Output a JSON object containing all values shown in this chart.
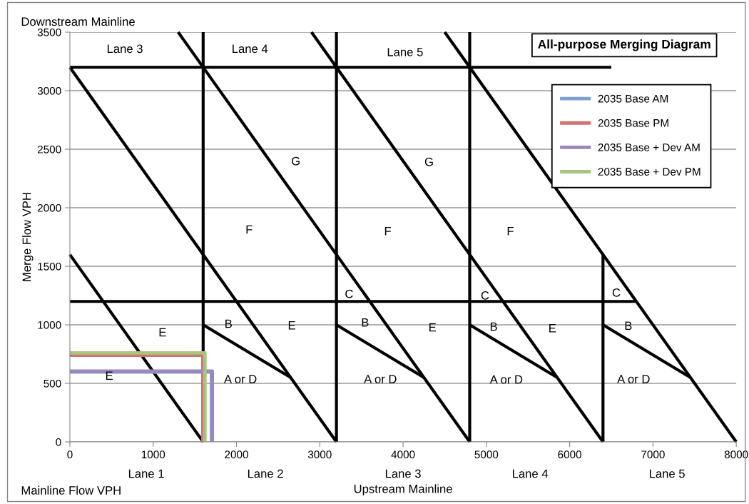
{
  "chart_data": {
    "type": "line",
    "title": "All-purpose Merging Diagram",
    "xlabel": "Upstream Mainline",
    "ylabel": "Merge Flow VPH",
    "xlim": [
      0,
      8000
    ],
    "xticks": [
      0,
      1000,
      2000,
      3000,
      4000,
      5000,
      6000,
      7000,
      8000
    ],
    "ylim": [
      0,
      3500
    ],
    "yticks": [
      0,
      500,
      1000,
      1500,
      2000,
      2500,
      3000,
      3500
    ],
    "grid": "y",
    "legend": "top right",
    "marker": "none",
    "line_style": "solid",
    "series": [
      {
        "color": "#000000",
        "x": [
          0,
          1600
        ],
        "values": [
          1600,
          0
        ]
      },
      {
        "color": "#000000",
        "x": [
          0,
          3200
        ],
        "values": [
          3200,
          0
        ]
      },
      {
        "color": "#000000",
        "x": [
          1300,
          4800
        ],
        "values": [
          3500,
          0
        ]
      },
      {
        "color": "#000000",
        "x": [
          2900,
          6400
        ],
        "values": [
          3500,
          0
        ]
      },
      {
        "color": "#000000",
        "x": [
          4500,
          8000
        ],
        "values": [
          3500,
          0
        ]
      },
      {
        "color": "#000000",
        "x": [
          1600,
          1600
        ],
        "values": [
          0,
          3500
        ]
      },
      {
        "color": "#000000",
        "x": [
          3200,
          3200
        ],
        "values": [
          0,
          3500
        ]
      },
      {
        "color": "#000000",
        "x": [
          4800,
          4800
        ],
        "values": [
          0,
          3500
        ]
      },
      {
        "color": "#000000",
        "x": [
          6400,
          6400
        ],
        "values": [
          0,
          1600
        ]
      },
      {
        "color": "#000000",
        "x": [
          0,
          6500
        ],
        "values": [
          3200,
          3200
        ]
      },
      {
        "color": "#000000",
        "x": [
          0,
          6800
        ],
        "values": [
          1200,
          1200
        ]
      },
      {
        "color": "#000000",
        "x": [
          1600,
          2650
        ],
        "values": [
          1000,
          550
        ]
      },
      {
        "color": "#000000",
        "x": [
          3200,
          4250
        ],
        "values": [
          1000,
          550
        ]
      },
      {
        "color": "#000000",
        "x": [
          4800,
          5850
        ],
        "values": [
          1000,
          550
        ]
      },
      {
        "color": "#000000",
        "x": [
          6400,
          7450
        ],
        "values": [
          1000,
          550
        ]
      },
      {
        "name": "2035 Base AM",
        "color": "#7f9fd0",
        "x": [
          0,
          1700,
          1700
        ],
        "values": [
          598,
          598,
          0
        ]
      },
      {
        "name": "2035 Base PM",
        "color": "#d07470",
        "x": [
          0,
          1596,
          1596
        ],
        "values": [
          740,
          740,
          0
        ]
      },
      {
        "name": "2035 Base + Dev AM",
        "color": "#9b88bb",
        "x": [
          0,
          1710,
          1710
        ],
        "values": [
          604,
          604,
          0
        ]
      },
      {
        "name": "2035 Base + Dev PM",
        "color": "#a5c67c",
        "x": [
          0,
          1621,
          1621
        ],
        "values": [
          760,
          760,
          0
        ]
      }
    ],
    "annotations": [
      "Downstream Mainline",
      "Mainline Flow VPH",
      "Lane 3",
      "Lane 4",
      "Lane 5",
      "E",
      "E",
      "B",
      "E",
      "G",
      "F",
      "C",
      "B",
      "E",
      "G",
      "F",
      "C",
      "B",
      "E",
      "F",
      "C",
      "B",
      "A or D",
      "A or D",
      "A or D",
      "A or D",
      "Lane 1",
      "Lane 2",
      "Lane 3",
      "Lane 4",
      "Lane 5"
    ]
  }
}
